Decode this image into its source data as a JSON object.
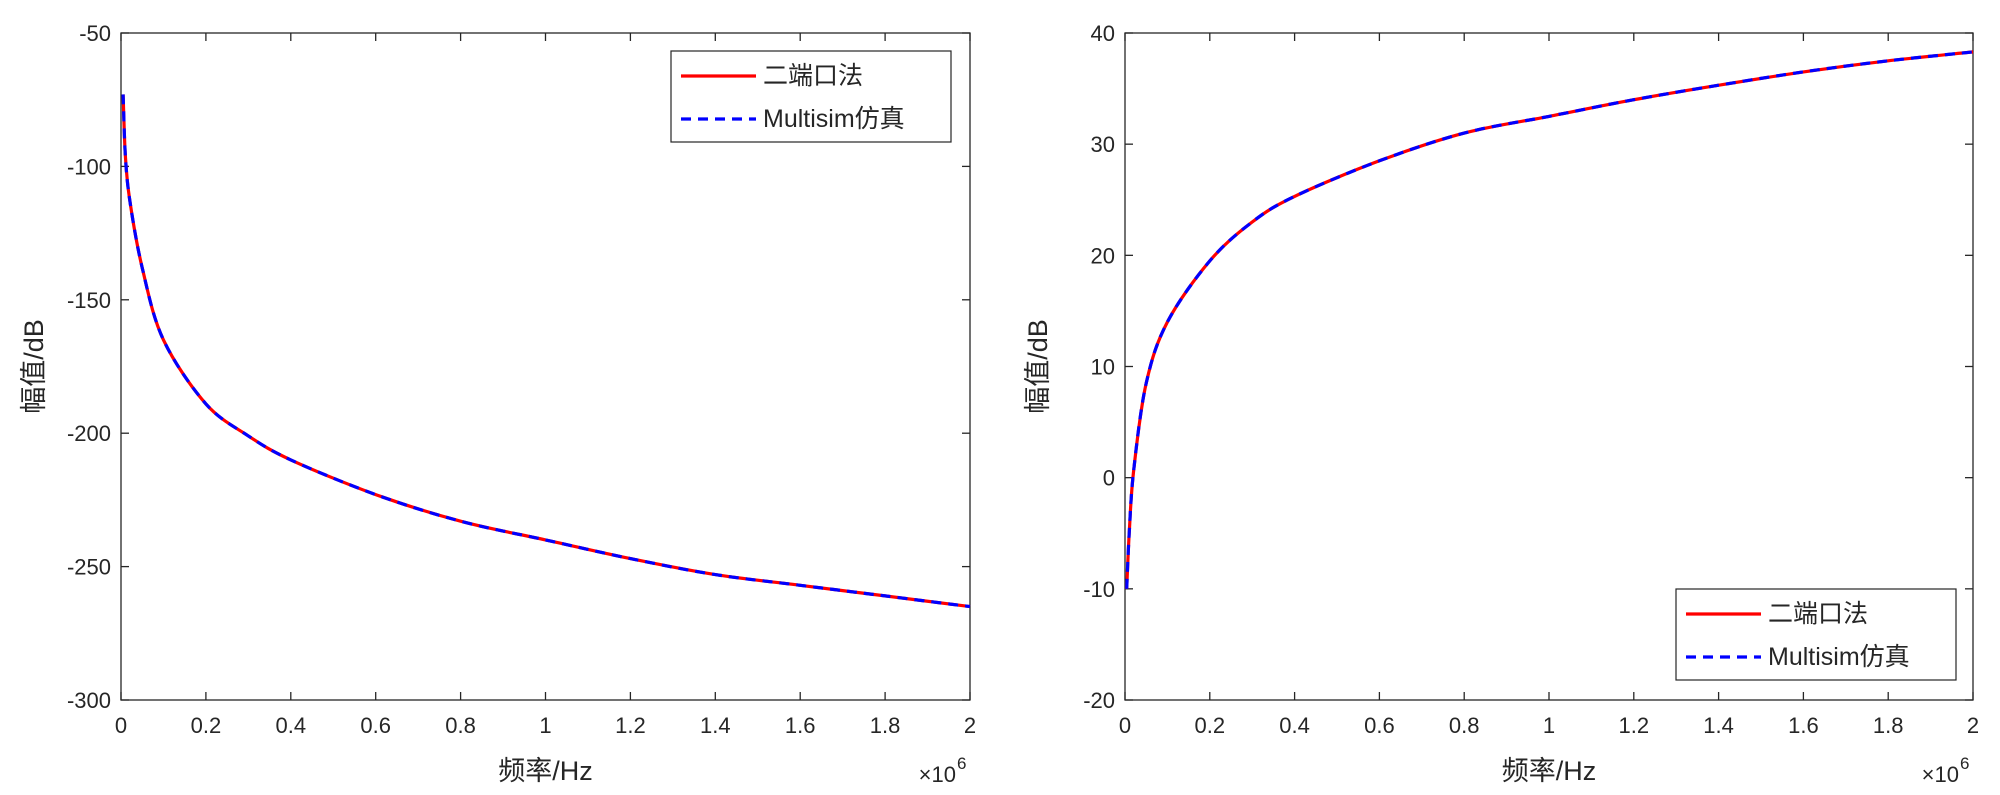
{
  "chart_data": [
    {
      "type": "line",
      "xlabel": "频率/Hz",
      "ylabel": "幅值/dB",
      "x_exponent": "×10",
      "x_exponent_power": "6",
      "xlim": [
        0,
        2
      ],
      "ylim": [
        -300,
        -50
      ],
      "xticks": [
        "0",
        "0.2",
        "0.4",
        "0.6",
        "0.8",
        "1",
        "1.2",
        "1.4",
        "1.6",
        "1.8",
        "2"
      ],
      "yticks": [
        "-300",
        "-250",
        "-200",
        "-150",
        "-100",
        "-50"
      ],
      "legend_position": "top-right",
      "x": [
        0.005,
        0.01,
        0.02,
        0.05,
        0.1,
        0.2,
        0.3,
        0.4,
        0.6,
        0.8,
        1.0,
        1.2,
        1.4,
        1.6,
        1.8,
        2.0
      ],
      "series": [
        {
          "name": "二端口法",
          "color": "#ff0000",
          "style": "solid",
          "values": [
            -73,
            -95,
            -112,
            -138,
            -165,
            -189,
            -201,
            -210,
            -223,
            -233,
            -240,
            -247,
            -253,
            -257,
            -261,
            -265
          ]
        },
        {
          "name": "Multisim仿真",
          "color": "#0000ff",
          "style": "dashed",
          "values": [
            -73,
            -95,
            -112,
            -138,
            -165,
            -189,
            -201,
            -210,
            -223,
            -233,
            -240,
            -247,
            -253,
            -257,
            -261,
            -265
          ]
        }
      ]
    },
    {
      "type": "line",
      "xlabel": "频率/Hz",
      "ylabel": "幅值/dB",
      "x_exponent": "×10",
      "x_exponent_power": "6",
      "xlim": [
        0,
        2
      ],
      "ylim": [
        -20,
        40
      ],
      "xticks": [
        "0",
        "0.2",
        "0.4",
        "0.6",
        "0.8",
        "1",
        "1.2",
        "1.4",
        "1.6",
        "1.8",
        "2"
      ],
      "yticks": [
        "-20",
        "-10",
        "0",
        "10",
        "20",
        "30",
        "40"
      ],
      "legend_position": "bottom-right",
      "x": [
        0.004,
        0.01,
        0.02,
        0.05,
        0.1,
        0.2,
        0.3,
        0.4,
        0.6,
        0.8,
        1.0,
        1.2,
        1.4,
        1.6,
        1.8,
        2.0
      ],
      "series": [
        {
          "name": "二端口法",
          "color": "#ff0000",
          "style": "solid",
          "values": [
            -10,
            -5,
            0.5,
            8.5,
            14,
            19.5,
            23,
            25.3,
            28.5,
            31,
            32.5,
            34,
            35.3,
            36.5,
            37.5,
            38.3
          ]
        },
        {
          "name": "Multisim仿真",
          "color": "#0000ff",
          "style": "dashed",
          "values": [
            -10,
            -5,
            0.5,
            8.5,
            14,
            19.5,
            23,
            25.3,
            28.5,
            31,
            32.5,
            34,
            35.3,
            36.5,
            37.5,
            38.3
          ]
        }
      ]
    }
  ]
}
